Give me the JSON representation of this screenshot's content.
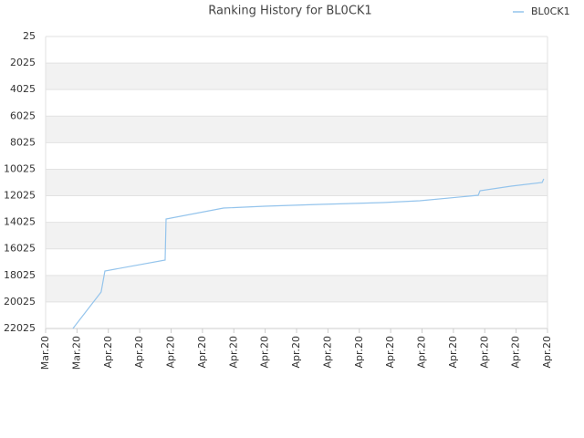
{
  "chart_data": {
    "type": "line",
    "title": "Ranking History for BL0CK1",
    "x": [
      0.87,
      1.77,
      1.89,
      3.81,
      3.84,
      5.67,
      6.98,
      8.73,
      10.76,
      11.93,
      13.79,
      13.85,
      14.84,
      15.83,
      15.88
    ],
    "series": [
      {
        "name": "BL0CK1",
        "color": "#94c4ec",
        "values": [
          22025,
          19275,
          17694,
          16869,
          13775,
          12950,
          12813,
          12675,
          12538,
          12400,
          11988,
          11644,
          11300,
          11025,
          10750
        ]
      }
    ],
    "xlim": [
      0,
      16
    ],
    "xticks": [
      {
        "value": 0,
        "label": "Mar.20"
      },
      {
        "value": 1,
        "label": "Mar.20"
      },
      {
        "value": 2,
        "label": "Apr.20"
      },
      {
        "value": 3,
        "label": "Apr.20"
      },
      {
        "value": 4,
        "label": "Apr.20"
      },
      {
        "value": 5,
        "label": "Apr.20"
      },
      {
        "value": 6,
        "label": "Apr.20"
      },
      {
        "value": 7,
        "label": "Apr.20"
      },
      {
        "value": 8,
        "label": "Apr.20"
      },
      {
        "value": 9,
        "label": "Apr.20"
      },
      {
        "value": 10,
        "label": "Apr.20"
      },
      {
        "value": 11,
        "label": "Apr.20"
      },
      {
        "value": 12,
        "label": "Apr.20"
      },
      {
        "value": 13,
        "label": "Apr.20"
      },
      {
        "value": 14,
        "label": "Apr.20"
      },
      {
        "value": 15,
        "label": "Apr.20"
      },
      {
        "value": 16,
        "label": "Apr.20"
      }
    ],
    "ylim": [
      25,
      22025
    ],
    "y_inverted": true,
    "yticks": [
      25,
      2025,
      4025,
      6025,
      8025,
      10025,
      12025,
      14025,
      16025,
      18025,
      20025,
      22025
    ],
    "grid": true,
    "legend": "top-right"
  }
}
